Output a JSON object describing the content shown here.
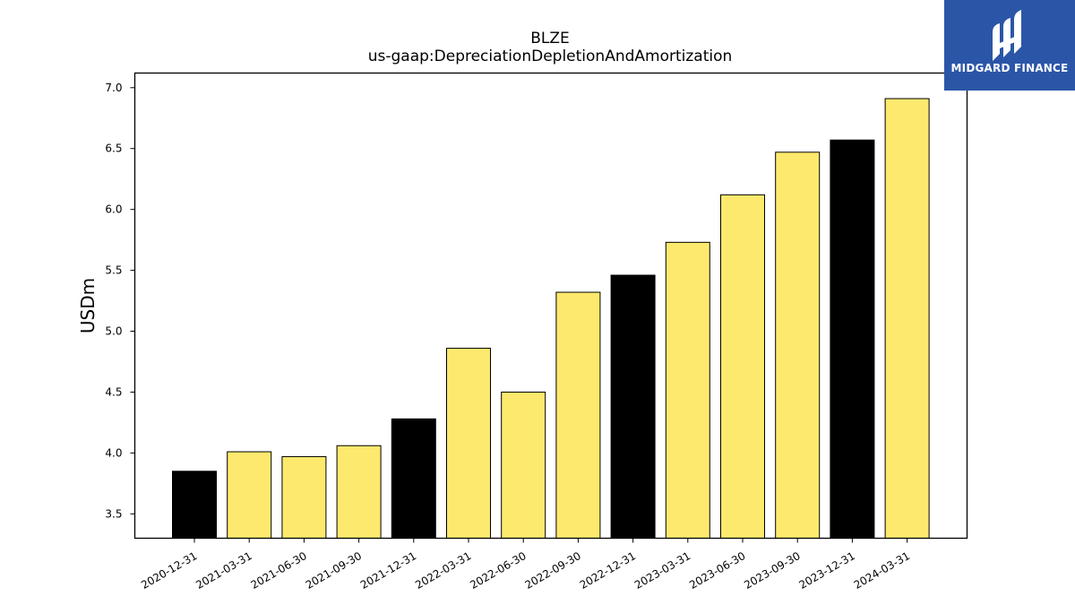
{
  "chart_data": {
    "type": "bar",
    "title": "BLZE",
    "subtitle": "us-gaap:DepreciationDepletionAndAmortization",
    "xlabel": "",
    "ylabel": "USDm",
    "categories": [
      "2020-12-31",
      "2021-03-31",
      "2021-06-30",
      "2021-09-30",
      "2021-12-31",
      "2022-03-31",
      "2022-06-30",
      "2022-09-30",
      "2022-12-31",
      "2023-03-31",
      "2023-06-30",
      "2023-09-30",
      "2023-12-31",
      "2024-03-31"
    ],
    "values": [
      3.85,
      4.01,
      3.97,
      4.06,
      4.28,
      4.86,
      4.5,
      5.32,
      5.46,
      5.73,
      6.12,
      6.47,
      6.57,
      6.91
    ],
    "bar_colors": [
      "#000000",
      "#fde96d",
      "#fde96d",
      "#fde96d",
      "#000000",
      "#fde96d",
      "#fde96d",
      "#fde96d",
      "#000000",
      "#fde96d",
      "#fde96d",
      "#fde96d",
      "#000000",
      "#fde96d"
    ],
    "ylim": [
      3.3,
      7.12
    ],
    "yticks": [
      "3.5",
      "4.0",
      "4.5",
      "5.0",
      "5.5",
      "6.0",
      "6.5",
      "7.0"
    ],
    "grid": false,
    "legend": "none"
  },
  "logo": {
    "text": "MIDGARD FINANCE",
    "background": "#2b56a8"
  }
}
